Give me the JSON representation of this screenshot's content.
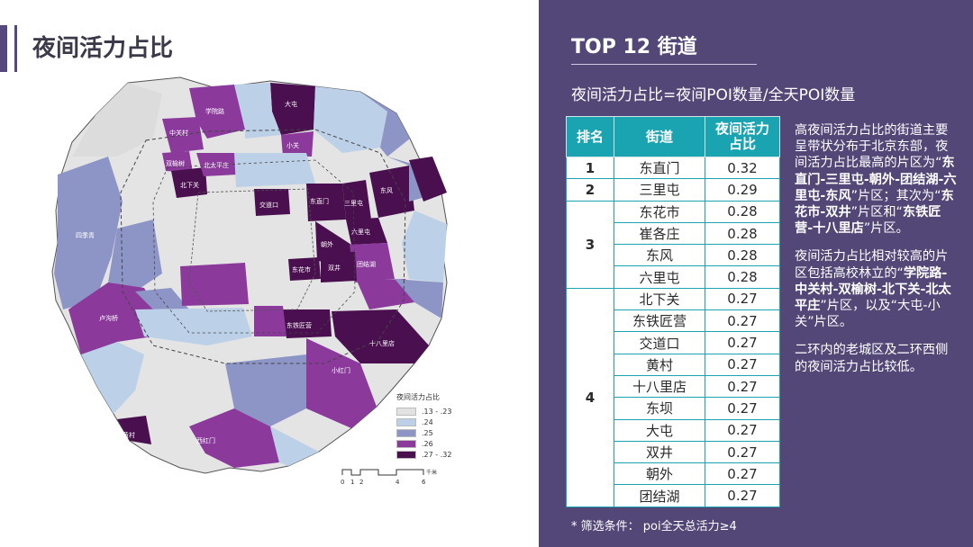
{
  "page_title": "夜间活力占比",
  "right_title": "TOP 12 街道",
  "formula": "夜间活力占比=夜间POI数量/全天POI数量",
  "table": {
    "headers": [
      "排名",
      "街道",
      "夜间活力占比"
    ],
    "groups": [
      {
        "rank": "1",
        "rows": [
          [
            "东直门",
            "0.32"
          ]
        ]
      },
      {
        "rank": "2",
        "rows": [
          [
            "三里屯",
            "0.29"
          ]
        ]
      },
      {
        "rank": "3",
        "rows": [
          [
            "东花市",
            "0.28"
          ],
          [
            "崔各庄",
            "0.28"
          ],
          [
            "东风",
            "0.28"
          ],
          [
            "六里屯",
            "0.28"
          ]
        ]
      },
      {
        "rank": "4",
        "rows": [
          [
            "北下关",
            "0.27"
          ],
          [
            "东铁匠营",
            "0.27"
          ],
          [
            "交道口",
            "0.27"
          ],
          [
            "黄村",
            "0.27"
          ],
          [
            "十八里店",
            "0.27"
          ],
          [
            "东坝",
            "0.27"
          ],
          [
            "大屯",
            "0.27"
          ],
          [
            "双井",
            "0.27"
          ],
          [
            "朝外",
            "0.27"
          ],
          [
            "团结湖",
            "0.27"
          ]
        ]
      }
    ]
  },
  "description": {
    "p1_a": "高夜间活力占比的街道主要呈带状分布于北京东部，夜间活力占比最高的片区为“",
    "p1_b": "东直门-三里屯-朝外-团结湖-六里屯-东风",
    "p1_c": "”片区；其次为“",
    "p1_d": "东花市-双井",
    "p1_e": "”片区和“",
    "p1_f": "东铁匠营-十八里店",
    "p1_g": "”片区。",
    "p2_a": "夜间活力占比相对较高的片区包括高校林立的“",
    "p2_b": "学院路-中关村-双榆树-北下关-北太平庄",
    "p2_c": "”片区，以及“大屯-小关”片区。",
    "p3": "二环内的老城区及二环西侧的夜间活力占比较低。"
  },
  "footnote": "* 筛选条件： poi全天总活力≥4",
  "legend": {
    "title": "夜间活力占比",
    "items": [
      {
        "label": ".13 - .23",
        "color": "#e2e2e2"
      },
      {
        "label": ".24",
        "color": "#bcd0e8"
      },
      {
        "label": ".25",
        "color": "#8d95c6"
      },
      {
        "label": ".26",
        "color": "#8b3a9c"
      },
      {
        "label": ".27 - .32",
        "color": "#4a0f4f"
      }
    ]
  },
  "scalebar": {
    "ticks": [
      "0",
      "1",
      "2",
      "4",
      "6"
    ],
    "unit": "千米"
  },
  "map_labels": {
    "datun": "大屯",
    "xueyuanlu": "学院路",
    "zhongguancun": "中关村",
    "shuangyushu": "双榆树",
    "beixiaguan": "北下关",
    "beitaipingzhuang": "北太平庄",
    "jiaodaokou": "交道口",
    "dongzhimen": "东直门",
    "sanlitun": "三里屯",
    "dongfeng": "东风",
    "liulitun": "六里屯",
    "tuanjiehu": "团结湖",
    "donghuashi": "东花市",
    "shuangjing": "双井",
    "dongtiejiangying": "东铁匠营",
    "shibalidian": "十八里店",
    "huangcun": "黄村",
    "xiaoguan": "小关",
    "lugouqiao": "卢沟桥",
    "xihongmen": "西红门",
    "sijiqing": "四季青",
    "chaowai": "朝外",
    "xiaohongmen": "小红门"
  },
  "colors": {
    "right_bg": "#534777",
    "table_header": "#1aa3b1",
    "accent": "#55497c"
  }
}
